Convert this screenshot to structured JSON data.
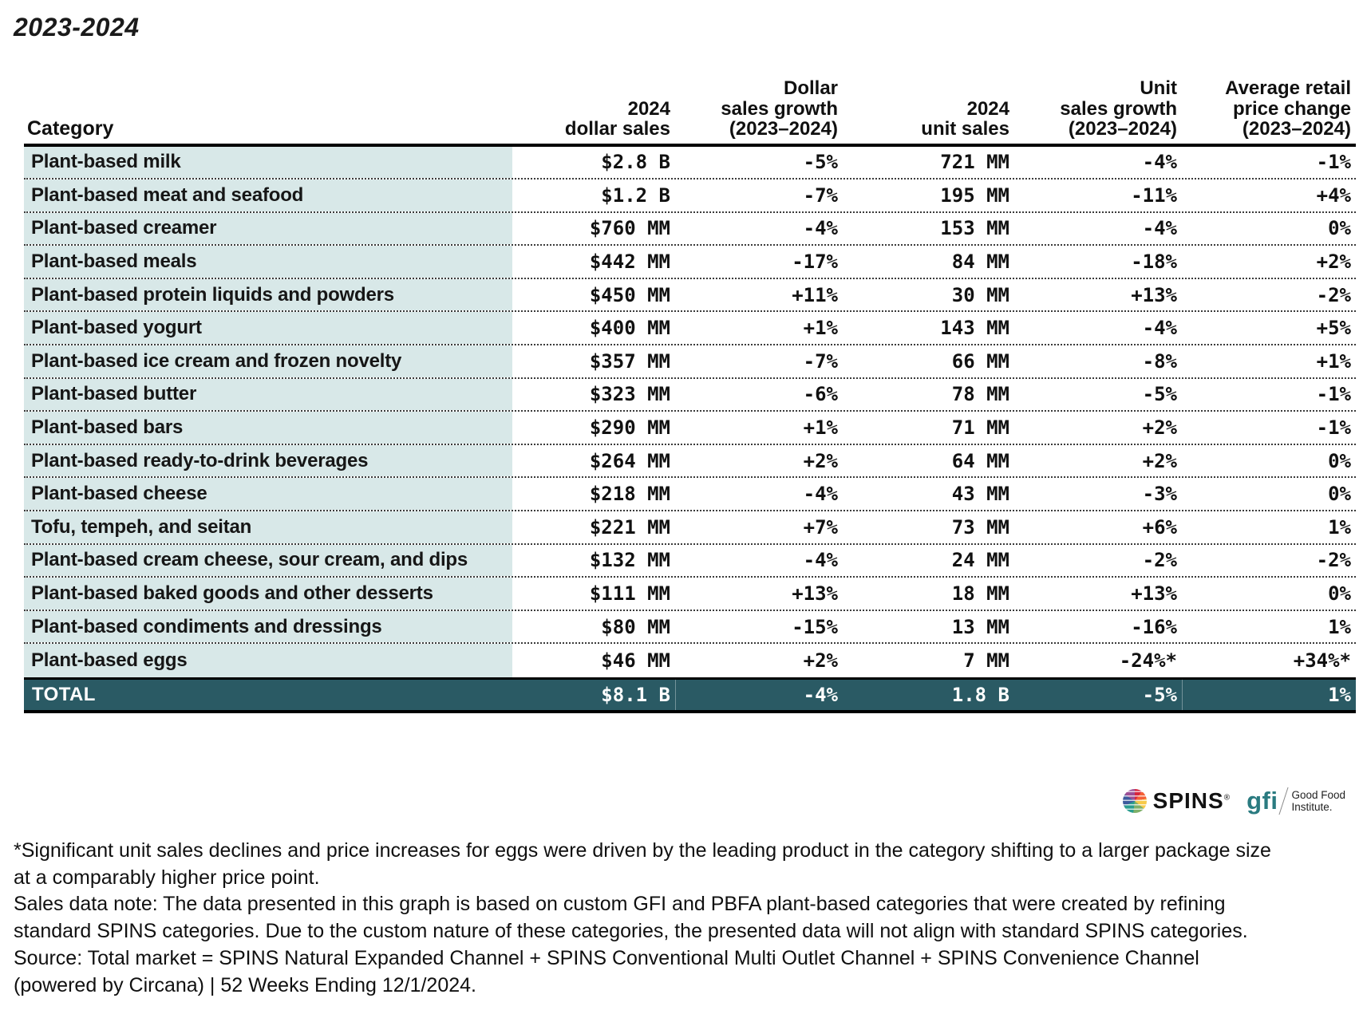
{
  "page_title": "2023-2024",
  "header": {
    "columns": [
      "Category",
      "2024\ndollar sales",
      "Dollar\nsales growth\n(2023–2024)",
      "2024\nunit sales",
      "Unit\nsales growth\n(2023–2024)",
      "Average retail\nprice change\n(2023–2024)"
    ]
  },
  "chart_data": {
    "type": "table",
    "title": "2023-2024",
    "columns": [
      "Category",
      "2024 dollar sales",
      "Dollar sales growth (2023–2024)",
      "2024 unit sales",
      "Unit sales growth (2023–2024)",
      "Average retail price change (2023–2024)"
    ],
    "rows": [
      [
        "Plant-based milk",
        "$2.8 B",
        "-5%",
        "721 MM",
        "-4%",
        "-1%"
      ],
      [
        "Plant-based meat and seafood",
        "$1.2 B",
        "-7%",
        "195 MM",
        "-11%",
        "+4%"
      ],
      [
        "Plant-based creamer",
        "$760 MM",
        "-4%",
        "153 MM",
        "-4%",
        "0%"
      ],
      [
        "Plant-based meals",
        "$442 MM",
        "-17%",
        "84 MM",
        "-18%",
        "+2%"
      ],
      [
        "Plant-based protein liquids and powders",
        "$450 MM",
        "+11%",
        "30 MM",
        "+13%",
        "-2%"
      ],
      [
        "Plant-based yogurt",
        "$400 MM",
        "+1%",
        "143 MM",
        "-4%",
        "+5%"
      ],
      [
        "Plant-based ice cream and frozen novelty",
        "$357 MM",
        "-7%",
        "66 MM",
        "-8%",
        "+1%"
      ],
      [
        "Plant-based butter",
        "$323 MM",
        "-6%",
        "78 MM",
        "-5%",
        "-1%"
      ],
      [
        "Plant-based bars",
        "$290 MM",
        "+1%",
        "71 MM",
        "+2%",
        "-1%"
      ],
      [
        "Plant-based ready-to-drink beverages",
        "$264 MM",
        "+2%",
        "64 MM",
        "+2%",
        "0%"
      ],
      [
        "Plant-based cheese",
        "$218 MM",
        "-4%",
        "43 MM",
        "-3%",
        "0%"
      ],
      [
        "Tofu, tempeh, and seitan",
        "$221 MM",
        "+7%",
        "73 MM",
        "+6%",
        "1%"
      ],
      [
        "Plant-based cream cheese, sour cream, and dips",
        "$132 MM",
        "-4%",
        "24 MM",
        "-2%",
        "-2%"
      ],
      [
        "Plant-based baked goods and other desserts",
        "$111 MM",
        "+13%",
        "18 MM",
        "+13%",
        "0%"
      ],
      [
        "Plant-based condiments and dressings",
        "$80 MM",
        "-15%",
        "13 MM",
        "-16%",
        "1%"
      ],
      [
        "Plant-based eggs",
        "$46 MM",
        "+2%",
        "7 MM",
        "-24%*",
        "+34%*"
      ]
    ],
    "total_row": [
      "TOTAL",
      "$8.1 B",
      "-4%",
      "1.8 B",
      "-5%",
      "1%"
    ]
  },
  "logos": {
    "spins_wordmark": "SPINS",
    "spins_reg": "®",
    "gfi_wordmark": "gfi",
    "gfi_org": "Good Food\nInstitute."
  },
  "footnotes": {
    "lines": [
      "*Significant unit sales declines and price increases for eggs were driven by the leading product in the category shifting to a larger package size",
      "at a comparably higher price point.",
      "Sales data note: The data presented in this graph is based on custom GFI and PBFA plant-based categories that were created by refining",
      "standard SPINS categories. Due to the custom nature of these categories, the presented data will not align with standard SPINS categories.",
      "Source: Total market = SPINS Natural Expanded Channel + SPINS Conventional Multi Outlet Channel + SPINS Convenience Channel",
      "(powered by Circana) | 52 Weeks Ending 12/1/2024."
    ]
  },
  "colors": {
    "row_bg": "#D8E8E8",
    "total_bg": "#2A5A64",
    "gfi_teal": "#2A7B80"
  }
}
